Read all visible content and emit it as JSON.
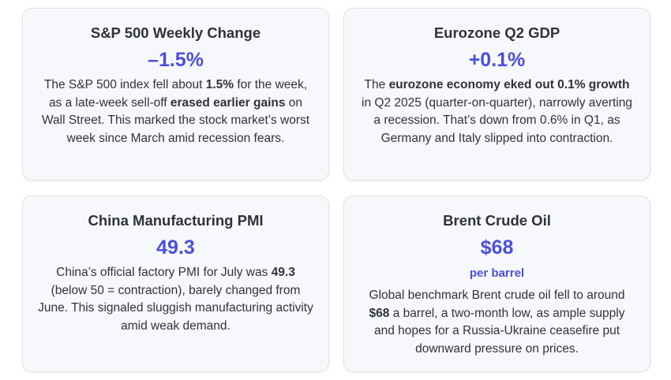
{
  "cards": [
    {
      "title": "S&P 500 Weekly Change",
      "value": "–1.5%",
      "desc": [
        {
          "t": "The S&P 500 index fell about ",
          "b": false
        },
        {
          "t": "1.5%",
          "b": true
        },
        {
          "t": " for the week, as a late-week sell-off ",
          "b": false
        },
        {
          "t": "erased earlier gains",
          "b": true
        },
        {
          "t": " on Wall Street. This marked the stock market’s worst week since March amid recession fears.",
          "b": false
        }
      ]
    },
    {
      "title": "Eurozone Q2 GDP",
      "value": "+0.1%",
      "desc": [
        {
          "t": "The ",
          "b": false
        },
        {
          "t": "eurozone economy eked out 0.1% growth",
          "b": true
        },
        {
          "t": " in Q2 2025 (quarter-on-quarter), narrowly averting a recession. That’s down from 0.6% in Q1, as Germany and Italy slipped into contraction.",
          "b": false
        }
      ]
    },
    {
      "title": "China Manufacturing PMI",
      "value": "49.3",
      "desc": [
        {
          "t": "China’s official factory PMI for July was ",
          "b": false
        },
        {
          "t": "49.3",
          "b": true
        },
        {
          "t": " (below 50 = contraction), barely changed from June. This signaled sluggish manufacturing activity amid weak demand.",
          "b": false
        }
      ]
    },
    {
      "title": "Brent Crude Oil",
      "value": "$68",
      "unit": "per barrel",
      "desc": [
        {
          "t": "Global benchmark Brent crude oil fell to around ",
          "b": false
        },
        {
          "t": "$68",
          "b": true
        },
        {
          "t": " a barrel, a two-month low, as ample supply and hopes for a Russia-Ukraine ceasefire put downward pressure on prices.",
          "b": false
        }
      ]
    }
  ]
}
